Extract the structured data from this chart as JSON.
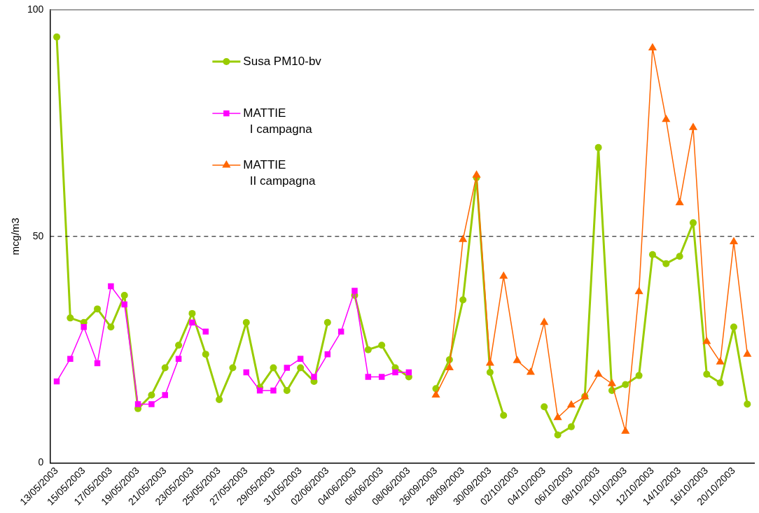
{
  "chart_data": {
    "type": "line",
    "ylabel": "mcg/m3",
    "categories": [
      "13/05/2003",
      null,
      "15/05/2003",
      null,
      "17/05/2003",
      null,
      "19/05/2003",
      null,
      "21/05/2003",
      null,
      "23/05/2003",
      null,
      "25/05/2003",
      null,
      "27/05/2003",
      null,
      "29/05/2003",
      null,
      "31/05/2003",
      null,
      "02/06/2003",
      null,
      "04/06/2003",
      null,
      "06/06/2003",
      null,
      "08/06/2003",
      null,
      "26/09/2003",
      null,
      "28/09/2003",
      null,
      "30/09/2003",
      null,
      "02/10/2003",
      null,
      "04/10/2003",
      null,
      "06/10/2003",
      null,
      "08/10/2003",
      null,
      "10/10/2003",
      null,
      "12/10/2003",
      null,
      "14/10/2003",
      null,
      "16/10/2003",
      null,
      "20/10/2003",
      null
    ],
    "series": [
      {
        "name": "Susa PM10-bv",
        "color": "#99cc00",
        "marker": "circle",
        "values": [
          94,
          32,
          31,
          34,
          30,
          37,
          12,
          15,
          21,
          26,
          33,
          24,
          14,
          21,
          31,
          16.7,
          21,
          16,
          21,
          18,
          31,
          null,
          37,
          25,
          26,
          21,
          19,
          null,
          16.4,
          22.8,
          36,
          63,
          20,
          10.5,
          null,
          null,
          12.4,
          6.2,
          8,
          14.7,
          69.6,
          16,
          17.3,
          19.3,
          46,
          44,
          45.6,
          53,
          19.6,
          17.7,
          30,
          13
        ]
      },
      {
        "name": "MATTIE\nI campagna",
        "color": "#ff00ff",
        "marker": "square",
        "values": [
          18,
          23,
          30,
          22,
          39,
          35,
          13,
          13,
          15,
          23,
          31,
          29,
          null,
          null,
          20,
          16,
          16,
          21,
          23,
          19,
          24,
          29,
          38,
          19,
          19,
          20,
          20,
          null,
          null,
          null,
          null,
          null,
          null,
          null,
          null,
          null,
          null,
          null,
          null,
          null,
          null,
          null,
          null,
          null,
          null,
          null,
          null,
          null,
          null,
          null,
          null,
          null
        ]
      },
      {
        "name": "MATTIE\nII campagna",
        "color": "#ff6600",
        "marker": "triangle",
        "values": [
          null,
          null,
          null,
          null,
          null,
          null,
          null,
          null,
          null,
          null,
          null,
          null,
          null,
          null,
          null,
          null,
          null,
          null,
          null,
          null,
          null,
          null,
          null,
          null,
          null,
          null,
          null,
          null,
          15,
          21,
          49.3,
          63.5,
          22,
          41.2,
          22.6,
          20,
          31,
          10,
          12.8,
          14.6,
          19.6,
          17.5,
          7,
          37.8,
          91.6,
          75.8,
          57.4,
          74,
          26.8,
          22.3,
          48.8,
          24
        ]
      }
    ],
    "ylim": [
      0,
      100
    ],
    "yticks": [
      0,
      50,
      100
    ],
    "grid": false,
    "legend": "top left",
    "line_style": "solid",
    "ref_lines": [
      {
        "axis": "y",
        "value": 50,
        "color": "#000000",
        "line_style": "dashed"
      }
    ]
  }
}
